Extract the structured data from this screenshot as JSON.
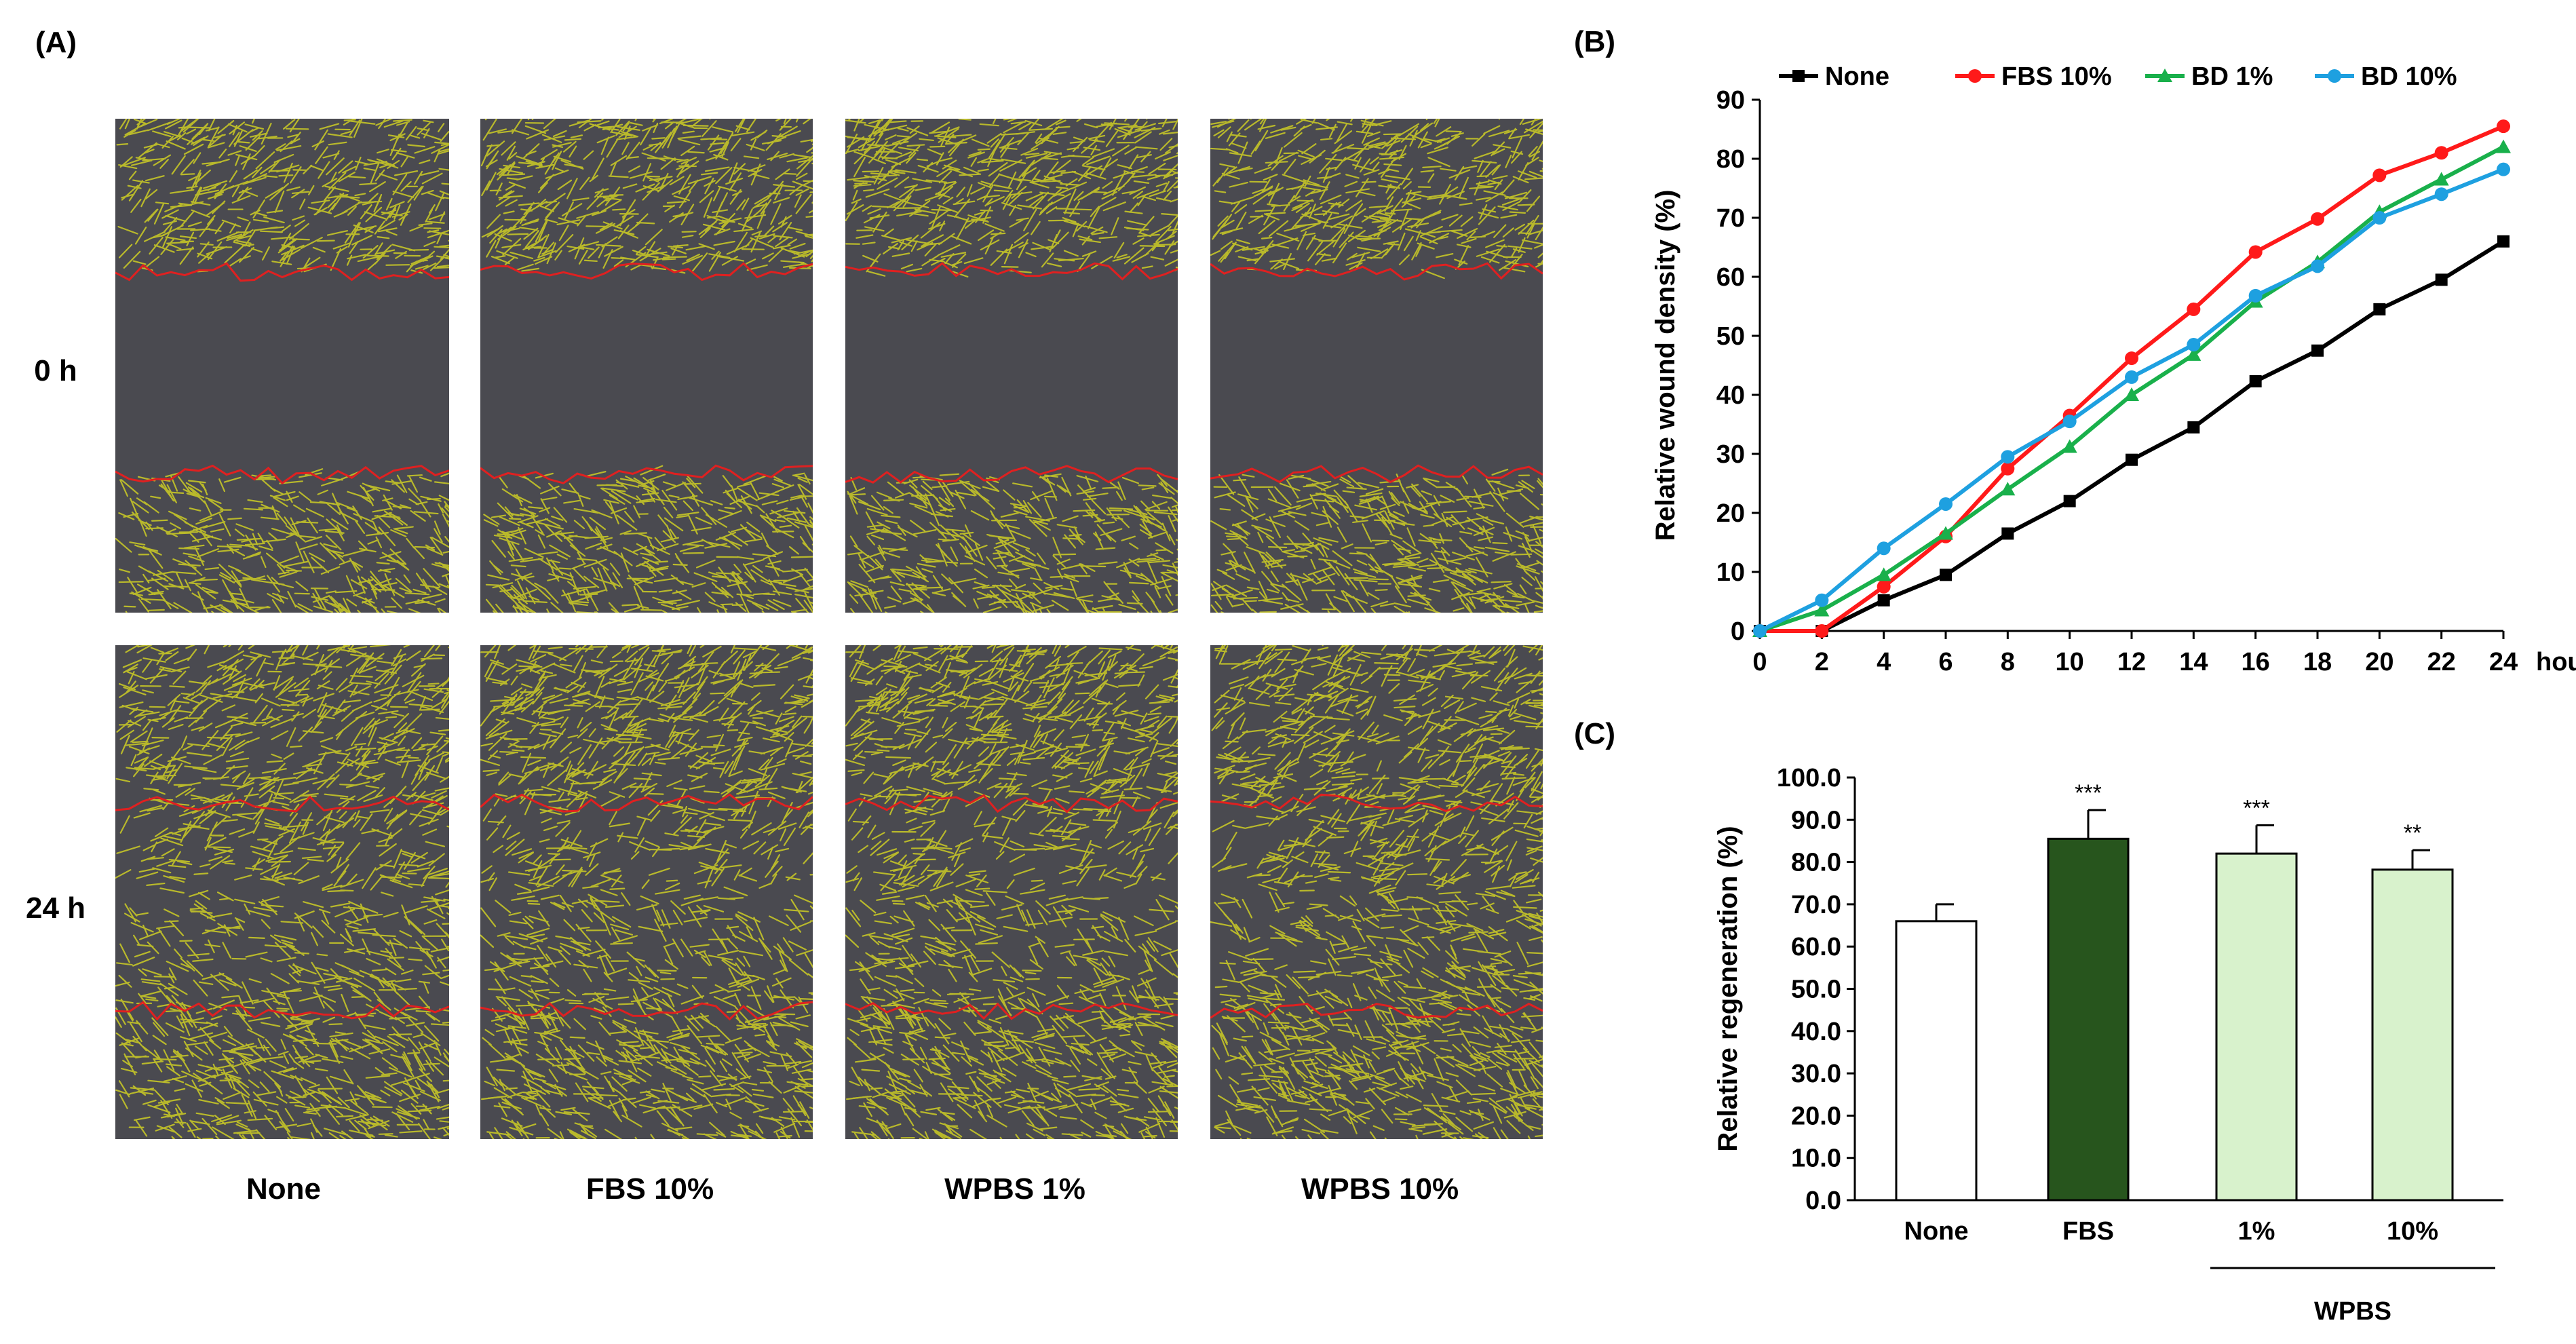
{
  "panel_A": {
    "label": "(A)",
    "row_labels": [
      "0 h",
      "24 h"
    ],
    "column_labels": [
      "None",
      "FBS 10%",
      "WPBS 1%",
      "WPBS 10%"
    ]
  },
  "colors": {
    "none": "#000000",
    "fbs": "#ff1a1a",
    "bd1": "#19b04b",
    "bd10": "#1ea0e0",
    "bar_none": "#ffffff",
    "bar_fbs": "#27551d",
    "bar_wpbs": "#d8f2cc",
    "cells": "#bfbf2a",
    "wound": "#4a4a50",
    "edge": "#e02020"
  },
  "chart_data": [
    {
      "id": "B",
      "panel_label": "(B)",
      "type": "line",
      "title": "",
      "xlabel": "hours",
      "ylabel": "Relative wound density (%)",
      "x": [
        0,
        2,
        4,
        6,
        8,
        10,
        12,
        14,
        16,
        18,
        20,
        22,
        24
      ],
      "xlim": [
        0,
        24
      ],
      "ylim": [
        0,
        90
      ],
      "yticks": [
        0,
        10,
        20,
        30,
        40,
        50,
        60,
        70,
        80,
        90
      ],
      "legend_position": "top",
      "series": [
        {
          "name": "None",
          "color": "#000000",
          "marker": "square",
          "values": [
            0,
            0,
            5.2,
            9.5,
            16.5,
            22,
            29,
            34.5,
            42.3,
            47.5,
            54.5,
            59.5,
            66
          ]
        },
        {
          "name": "FBS 10%",
          "color": "#ff1a1a",
          "marker": "circle",
          "values": [
            0,
            0,
            7.5,
            16,
            27.5,
            36.5,
            46.2,
            54.5,
            64.2,
            69.8,
            77.2,
            81,
            85.5
          ]
        },
        {
          "name": "BD 1%",
          "color": "#19b04b",
          "marker": "triangle",
          "values": [
            0,
            3.5,
            9.5,
            16.5,
            24,
            31.2,
            40,
            46.8,
            55.8,
            62.5,
            71,
            76.5,
            82
          ]
        },
        {
          "name": "BD 10%",
          "color": "#1ea0e0",
          "marker": "circle",
          "values": [
            0,
            5.2,
            14,
            21.5,
            29.5,
            35.5,
            43,
            48.5,
            56.8,
            61.8,
            70,
            74,
            78.2
          ]
        }
      ]
    },
    {
      "id": "C",
      "panel_label": "(C)",
      "type": "bar",
      "title": "",
      "xlabel": "",
      "ylabel": "Relative regeneration (%)",
      "categories": [
        "None",
        "FBS",
        "1%",
        "10%"
      ],
      "values": [
        66.0,
        85.5,
        82.0,
        78.2
      ],
      "errors": [
        4.0,
        6.8,
        6.7,
        4.6
      ],
      "significance": [
        "",
        "***",
        "***",
        "**"
      ],
      "fill_colors": [
        "#ffffff",
        "#27551d",
        "#d8f2cc",
        "#d8f2cc"
      ],
      "ylim": [
        0,
        100
      ],
      "ytick_labels": [
        "0.0",
        "10.0",
        "20.0",
        "30.0",
        "40.0",
        "50.0",
        "60.0",
        "70.0",
        "80.0",
        "90.0",
        "100.0"
      ],
      "group_label": "WPBS"
    }
  ]
}
